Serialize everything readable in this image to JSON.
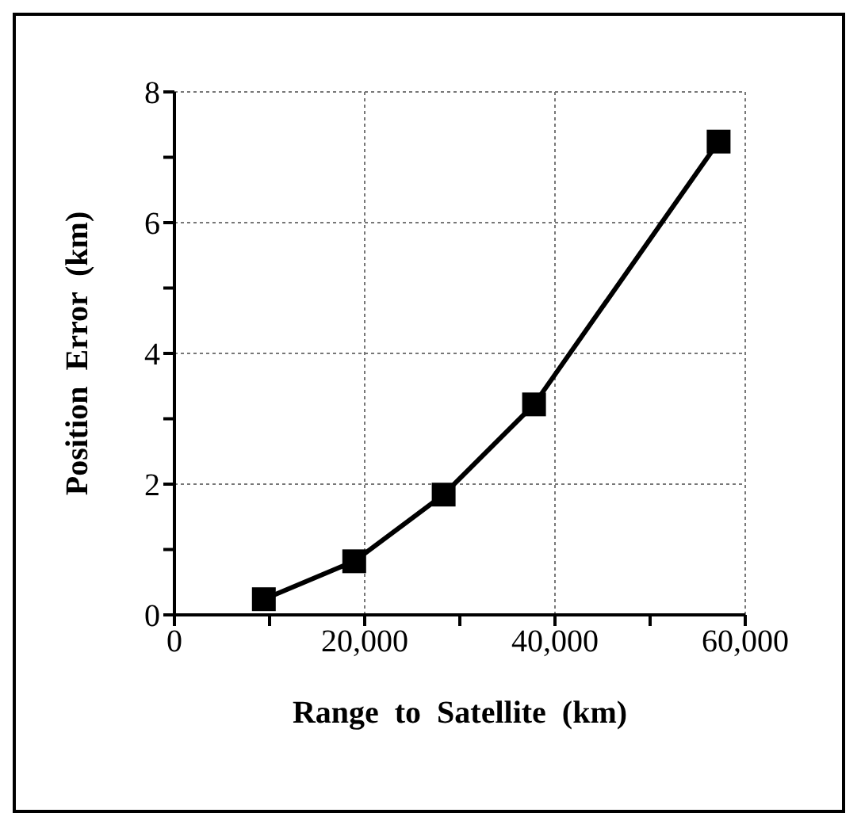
{
  "chart_data": {
    "type": "line",
    "xlabel": "Range to Satellite (km)",
    "ylabel": "Position Error (km)",
    "x": [
      9400,
      18900,
      28300,
      37800,
      57200
    ],
    "series": [
      {
        "color": "#000000",
        "values": [
          0.24,
          0.82,
          1.84,
          3.22,
          7.24
        ]
      }
    ],
    "xlim": [
      0,
      60000
    ],
    "xticks": [
      {
        "value": 0,
        "label": "0"
      },
      {
        "value": 10000,
        "label": null
      },
      {
        "value": 20000,
        "label": "20,000"
      },
      {
        "value": 30000,
        "label": null
      },
      {
        "value": 40000,
        "label": "40,000"
      },
      {
        "value": 50000,
        "label": null
      },
      {
        "value": 60000,
        "label": "60,000"
      }
    ],
    "ylim": [
      0,
      8
    ],
    "yticks": [
      0,
      {
        "value": 1,
        "label": null
      },
      2,
      {
        "value": 3,
        "label": null
      },
      4,
      {
        "value": 5,
        "label": null
      },
      6,
      {
        "value": 7,
        "label": null
      },
      8
    ],
    "grid": true,
    "marker": "square",
    "line_style": "solid"
  }
}
